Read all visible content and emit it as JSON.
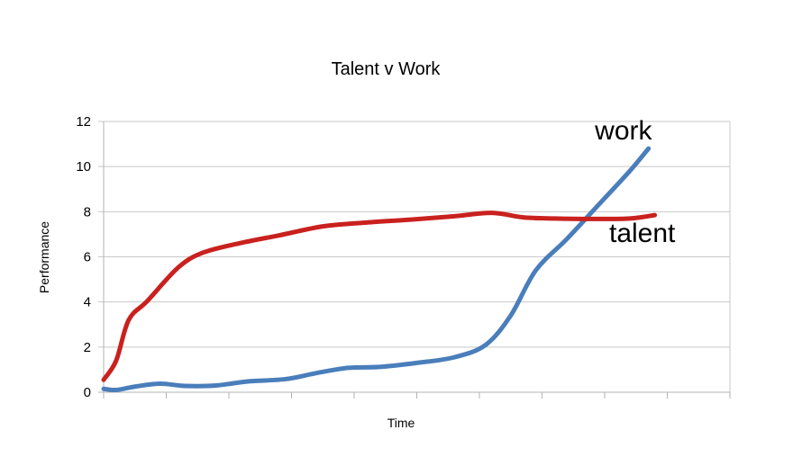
{
  "chart_data": {
    "type": "line",
    "title": "Talent v Work",
    "xlabel": "Time",
    "ylabel": "Performance",
    "ylim": [
      0,
      12
    ],
    "yticks": [
      0,
      2,
      4,
      6,
      8,
      10,
      12
    ],
    "x_tick_count": 10,
    "grid": true,
    "series": [
      {
        "name": "work",
        "color": "#4a7ebb",
        "points": [
          [
            0.0,
            0.15
          ],
          [
            0.2,
            0.1
          ],
          [
            0.5,
            0.25
          ],
          [
            0.9,
            0.38
          ],
          [
            1.3,
            0.28
          ],
          [
            1.8,
            0.3
          ],
          [
            2.3,
            0.48
          ],
          [
            2.9,
            0.58
          ],
          [
            3.4,
            0.85
          ],
          [
            3.9,
            1.08
          ],
          [
            4.4,
            1.12
          ],
          [
            5.0,
            1.3
          ],
          [
            5.6,
            1.55
          ],
          [
            6.1,
            2.1
          ],
          [
            6.5,
            3.4
          ],
          [
            6.9,
            5.4
          ],
          [
            7.4,
            6.8
          ],
          [
            7.9,
            8.3
          ],
          [
            8.4,
            9.8
          ],
          [
            8.7,
            10.8
          ]
        ]
      },
      {
        "name": "talent",
        "color": "#c9211e",
        "points": [
          [
            0.0,
            0.55
          ],
          [
            0.2,
            1.4
          ],
          [
            0.4,
            3.2
          ],
          [
            0.7,
            4.05
          ],
          [
            1.2,
            5.55
          ],
          [
            1.6,
            6.2
          ],
          [
            2.2,
            6.62
          ],
          [
            2.8,
            6.95
          ],
          [
            3.5,
            7.35
          ],
          [
            4.2,
            7.52
          ],
          [
            4.9,
            7.65
          ],
          [
            5.6,
            7.8
          ],
          [
            6.2,
            7.95
          ],
          [
            6.7,
            7.75
          ],
          [
            7.2,
            7.7
          ],
          [
            7.8,
            7.68
          ],
          [
            8.4,
            7.7
          ],
          [
            8.8,
            7.85
          ]
        ]
      }
    ],
    "annotations": [
      {
        "text": "work",
        "x": 8.3,
        "y": 11.2
      },
      {
        "text": "talent",
        "x": 8.6,
        "y": 6.65
      }
    ]
  }
}
